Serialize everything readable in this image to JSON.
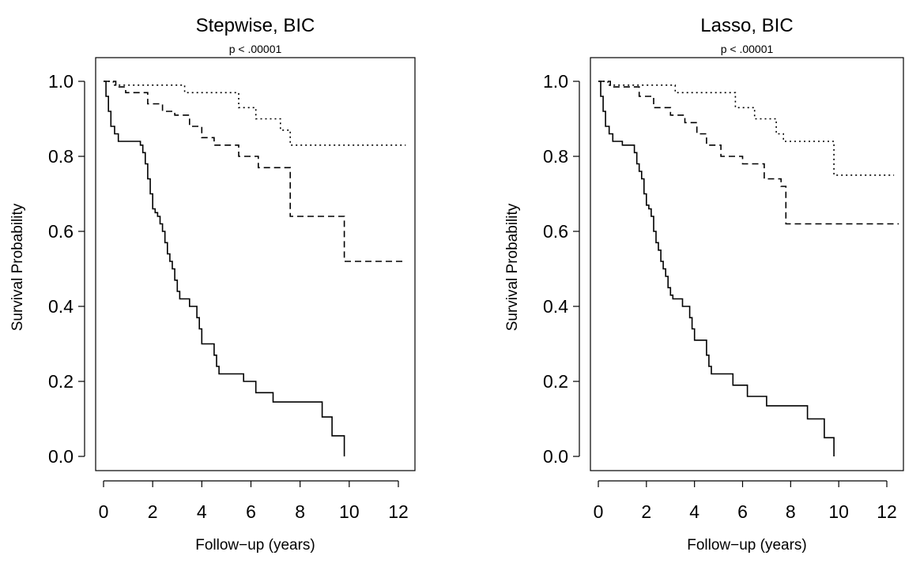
{
  "chart_data": [
    {
      "type": "line",
      "subtype": "kaplan-meier",
      "title": "Stepwise, BIC",
      "subtitle": "p < .00001",
      "xlabel": "Follow−up (years)",
      "ylabel": "Survival Probability",
      "xlim": [
        0,
        12.5
      ],
      "ylim": [
        0,
        1.0
      ],
      "xticks": [
        "0",
        "2",
        "4",
        "6",
        "8",
        "10",
        "12"
      ],
      "yticks": [
        "0.0",
        "0.2",
        "0.4",
        "0.6",
        "0.8",
        "1.0"
      ],
      "grid": false,
      "series": [
        {
          "style": "solid",
          "x": [
            0,
            0.1,
            0.2,
            0.3,
            0.45,
            0.6,
            1.0,
            1.5,
            1.6,
            1.7,
            1.8,
            1.9,
            2.0,
            2.1,
            2.2,
            2.3,
            2.4,
            2.5,
            2.6,
            2.7,
            2.8,
            2.9,
            3.0,
            3.1,
            3.2,
            3.3,
            3.5,
            3.8,
            3.9,
            4.0,
            4.1,
            4.2,
            4.5,
            4.6,
            4.7,
            5.2,
            5.7,
            6.2,
            6.9,
            8.9,
            9.3,
            9.8
          ],
          "y": [
            1.0,
            0.96,
            0.92,
            0.88,
            0.86,
            0.84,
            0.84,
            0.83,
            0.81,
            0.78,
            0.74,
            0.7,
            0.66,
            0.65,
            0.64,
            0.62,
            0.6,
            0.57,
            0.54,
            0.52,
            0.5,
            0.47,
            0.44,
            0.42,
            0.42,
            0.42,
            0.4,
            0.37,
            0.34,
            0.3,
            0.3,
            0.3,
            0.27,
            0.24,
            0.22,
            0.22,
            0.2,
            0.17,
            0.145,
            0.105,
            0.055,
            0.0
          ]
        },
        {
          "style": "dashed",
          "x": [
            0,
            0.5,
            0.9,
            1.8,
            2.4,
            2.9,
            3.5,
            4.0,
            4.5,
            5.5,
            6.3,
            7.6,
            9.8,
            12.3
          ],
          "y": [
            1.0,
            0.985,
            0.97,
            0.94,
            0.92,
            0.91,
            0.88,
            0.85,
            0.83,
            0.8,
            0.77,
            0.64,
            0.52,
            0.52
          ]
        },
        {
          "style": "dotted",
          "x": [
            0,
            0.4,
            3.3,
            5.5,
            6.2,
            7.2,
            7.6,
            12.3
          ],
          "y": [
            1.0,
            0.99,
            0.97,
            0.93,
            0.9,
            0.87,
            0.83,
            0.83
          ]
        }
      ]
    },
    {
      "type": "line",
      "subtype": "kaplan-meier",
      "title": "Lasso, BIC",
      "subtitle": "p < .00001",
      "xlabel": "Follow−up (years)",
      "ylabel": "Survival Probability",
      "xlim": [
        0,
        12.5
      ],
      "ylim": [
        0,
        1.0
      ],
      "xticks": [
        "0",
        "2",
        "4",
        "6",
        "8",
        "10",
        "12"
      ],
      "yticks": [
        "0.0",
        "0.2",
        "0.4",
        "0.6",
        "0.8",
        "1.0"
      ],
      "grid": false,
      "series": [
        {
          "style": "solid",
          "x": [
            0,
            0.1,
            0.2,
            0.3,
            0.45,
            0.6,
            1.0,
            1.5,
            1.6,
            1.7,
            1.8,
            1.9,
            2.0,
            2.1,
            2.2,
            2.3,
            2.4,
            2.5,
            2.6,
            2.7,
            2.8,
            2.9,
            3.0,
            3.1,
            3.3,
            3.5,
            3.8,
            3.9,
            4.0,
            4.3,
            4.5,
            4.6,
            4.7,
            5.2,
            5.6,
            6.2,
            7.0,
            8.7,
            9.4,
            9.8
          ],
          "y": [
            1.0,
            0.96,
            0.92,
            0.88,
            0.86,
            0.84,
            0.83,
            0.81,
            0.78,
            0.76,
            0.74,
            0.7,
            0.67,
            0.66,
            0.64,
            0.6,
            0.57,
            0.55,
            0.52,
            0.5,
            0.48,
            0.45,
            0.43,
            0.42,
            0.42,
            0.4,
            0.37,
            0.34,
            0.31,
            0.31,
            0.27,
            0.24,
            0.22,
            0.22,
            0.19,
            0.16,
            0.135,
            0.1,
            0.05,
            0.0
          ]
        },
        {
          "style": "dashed",
          "x": [
            0,
            0.5,
            1.7,
            2.3,
            3.0,
            3.6,
            4.1,
            4.5,
            5.1,
            6.0,
            6.9,
            7.6,
            7.8,
            12.5
          ],
          "y": [
            1.0,
            0.985,
            0.96,
            0.93,
            0.91,
            0.89,
            0.86,
            0.83,
            0.8,
            0.78,
            0.74,
            0.72,
            0.62,
            0.62
          ]
        },
        {
          "style": "dotted",
          "x": [
            0,
            0.4,
            3.2,
            5.7,
            6.5,
            7.4,
            7.7,
            9.8,
            12.3
          ],
          "y": [
            1.0,
            0.99,
            0.97,
            0.93,
            0.9,
            0.86,
            0.84,
            0.75,
            0.75
          ]
        }
      ]
    }
  ]
}
